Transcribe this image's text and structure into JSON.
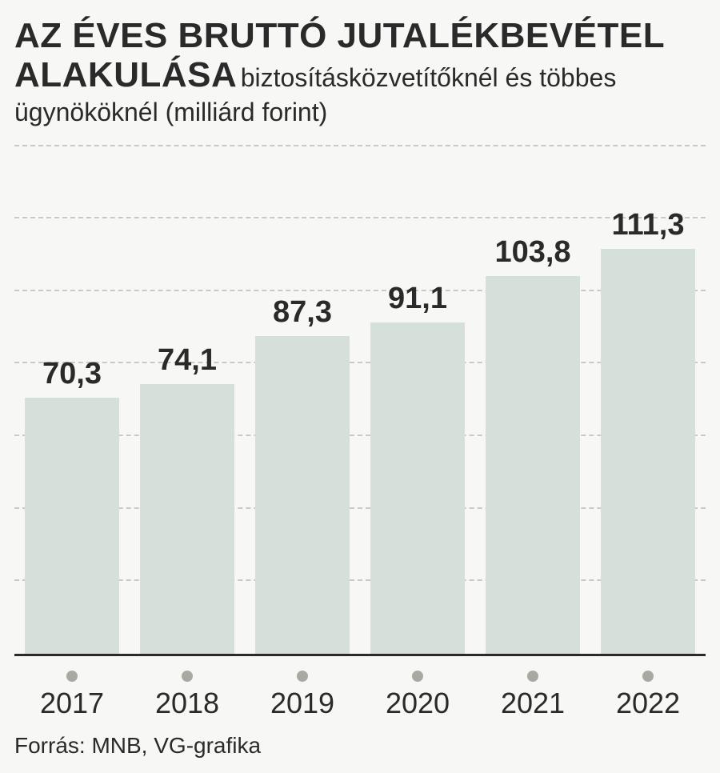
{
  "header": {
    "title_main": "AZ ÉVES BRUTTÓ JUTALÉKBEVÉTEL ALAKULÁSA",
    "title_sub_inline": " biztosításközvetítőknél és többes",
    "title_sub_line2": "ügynököknél (milliárd forint)"
  },
  "chart": {
    "type": "bar",
    "categories": [
      "2017",
      "2018",
      "2019",
      "2020",
      "2021",
      "2022"
    ],
    "values": [
      70.3,
      74.1,
      87.3,
      91.1,
      103.8,
      111.3
    ],
    "display_values": [
      "70,3",
      "74,1",
      "87,3",
      "91,1",
      "103,8",
      "111,3"
    ],
    "bar_color": "#d4e0d9",
    "background_color": "#f7f7f5",
    "grid_color": "#c9c9c5",
    "axis_color": "#2a2a2a",
    "dot_color": "#a9a9a4",
    "text_color": "#2a2a2a",
    "ylim_max": 140,
    "gridline_step": 20,
    "gridline_count": 7,
    "value_fontsize": 38,
    "xlabel_fontsize": 36,
    "title_main_fontsize": 44,
    "title_sub_fontsize": 32,
    "footer_fontsize": 28,
    "bar_width_pct": 82
  },
  "footer": {
    "source_label": "Forrás: MNB, VG-grafika"
  }
}
